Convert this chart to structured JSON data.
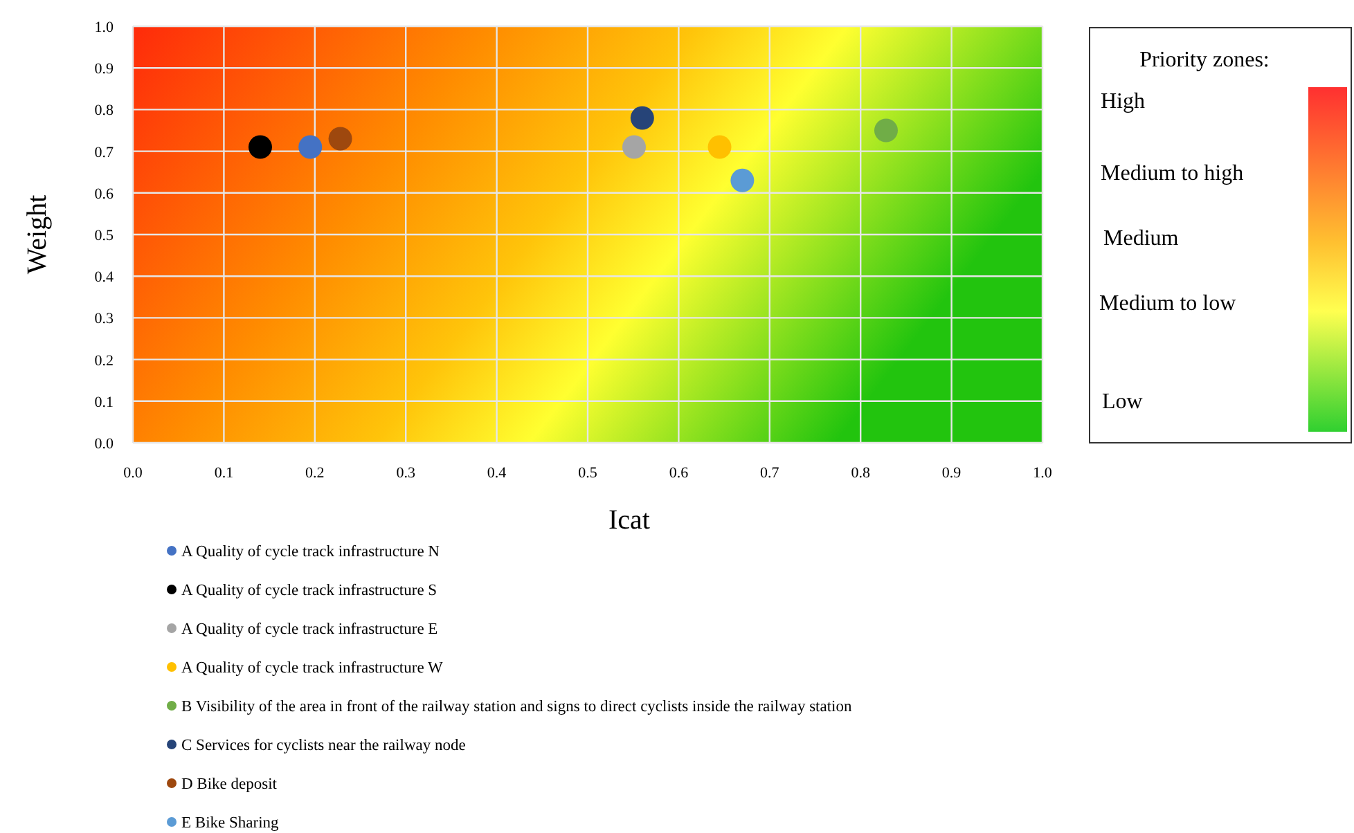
{
  "chart_data": {
    "type": "scatter",
    "xlabel": "Icat",
    "ylabel": "Weight",
    "xlim": [
      0,
      1
    ],
    "ylim": [
      0,
      1
    ],
    "xticks": [
      {
        "value": 0,
        "label": "0.0"
      },
      0.1,
      0.2,
      0.3,
      0.4,
      0.5,
      0.6,
      0.7,
      0.8,
      0.9,
      {
        "value": 1,
        "label": "1.0"
      }
    ],
    "yticks": [
      {
        "value": 0,
        "label": "0.0"
      },
      0.1,
      0.2,
      0.3,
      0.4,
      0.5,
      0.6,
      0.7,
      0.8,
      0.9,
      {
        "value": 1,
        "label": "1.0"
      }
    ],
    "grid": true,
    "legend": "bottom",
    "marker": "circle",
    "annotations": [
      "Priority zones:",
      "High",
      "Medium to high",
      "Medium",
      "Medium to low",
      "Low"
    ],
    "series": [
      {
        "name": "A Quality of cycle track infrastructure N",
        "color": "#4472c4",
        "x": [
          0.195
        ],
        "values": [
          0.71
        ]
      },
      {
        "name": "A Quality of cycle track infrastructure S",
        "color": "#000000",
        "x": [
          0.14
        ],
        "values": [
          0.71
        ]
      },
      {
        "name": "A Quality of cycle track infrastructure E",
        "color": "#a5a5a5",
        "x": [
          0.551
        ],
        "values": [
          0.71
        ]
      },
      {
        "name": "A Quality of cycle track infrastructure W",
        "color": "#ffc000",
        "x": [
          0.645
        ],
        "values": [
          0.71
        ]
      },
      {
        "name": "B Visibility of the area in front of the railway station and signs to direct cyclists inside the railway station",
        "color": "#70ad47",
        "x": [
          0.828
        ],
        "values": [
          0.75
        ]
      },
      {
        "name": "C Services for cyclists near the railway node",
        "color": "#264478",
        "x": [
          0.56
        ],
        "values": [
          0.78
        ]
      },
      {
        "name": "D Bike deposit",
        "color": "#9e480e",
        "x": [
          0.228
        ],
        "values": [
          0.73
        ]
      },
      {
        "name": "E Bike Sharing",
        "color": "#5b9bd5",
        "x": [
          0.67
        ],
        "values": [
          0.63
        ]
      }
    ]
  }
}
